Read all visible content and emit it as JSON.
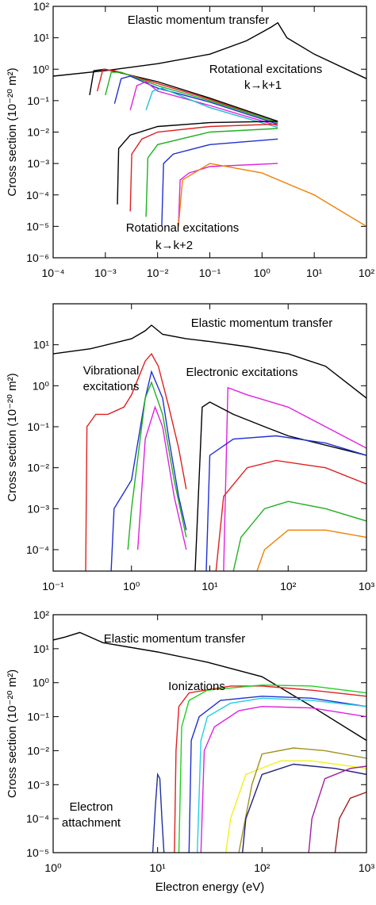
{
  "chart_data": [
    {
      "type": "line",
      "xscale": "log",
      "yscale": "log",
      "y_label": "Cross section (10⁻²⁰ m²)",
      "xlim": [
        0.0001,
        100
      ],
      "ylim": [
        1e-06,
        100
      ],
      "xticks": [
        {
          "value": 0.0001,
          "label": "10⁻⁴"
        },
        {
          "value": 0.001,
          "label": "10⁻³"
        },
        {
          "value": 0.01,
          "label": "10⁻²"
        },
        {
          "value": 0.1,
          "label": "10⁻¹"
        },
        {
          "value": 1,
          "label": "10⁰"
        },
        {
          "value": 10,
          "label": "10¹"
        },
        {
          "value": 100,
          "label": "10²"
        }
      ],
      "yticks": [
        {
          "value": 1e-06,
          "label": "10⁻⁶"
        },
        {
          "value": 1e-05,
          "label": "10⁻⁵"
        },
        {
          "value": 0.0001,
          "label": "10⁻⁴"
        },
        {
          "value": 0.001,
          "label": "10⁻³"
        },
        {
          "value": 0.01,
          "label": "10⁻²"
        },
        {
          "value": 0.1,
          "label": "10⁻¹"
        },
        {
          "value": 1,
          "label": "10⁰"
        },
        {
          "value": 10,
          "label": "10¹"
        },
        {
          "value": 100,
          "label": "10²"
        }
      ],
      "annotations": [
        "Elastic momentum transfer",
        "Rotational excitations",
        "k→k+1",
        "Rotational excitations",
        "k→k+2"
      ],
      "series": [
        {
          "color": "#000000",
          "x": [
            0.0001,
            0.001,
            0.01,
            0.1,
            0.5,
            1,
            1.5,
            2,
            3,
            10,
            100
          ],
          "values": [
            0.6,
            0.9,
            1.5,
            3,
            8,
            15,
            22,
            30,
            10,
            3,
            0.5
          ]
        },
        {
          "color": "#000000",
          "x": [
            0.0005,
            0.0006,
            0.001,
            0.01,
            0.1,
            2
          ],
          "values": [
            0.15,
            0.9,
            1,
            0.4,
            0.12,
            0.022
          ]
        },
        {
          "color": "#e02020",
          "x": [
            0.0007,
            0.0009,
            0.0015,
            0.01,
            0.1,
            2
          ],
          "values": [
            0.2,
            1,
            0.9,
            0.35,
            0.11,
            0.02
          ]
        },
        {
          "color": "#20b020",
          "x": [
            0.001,
            0.0013,
            0.002,
            0.01,
            0.1,
            2
          ],
          "values": [
            0.15,
            0.8,
            0.8,
            0.3,
            0.1,
            0.02
          ]
        },
        {
          "color": "#2030d0",
          "x": [
            0.0015,
            0.002,
            0.003,
            0.01,
            0.1,
            2
          ],
          "values": [
            0.08,
            0.5,
            0.6,
            0.25,
            0.09,
            0.018
          ]
        },
        {
          "color": "#e020e0",
          "x": [
            0.003,
            0.004,
            0.006,
            0.01,
            0.1,
            2
          ],
          "values": [
            0.05,
            0.3,
            0.4,
            0.2,
            0.07,
            0.016
          ]
        },
        {
          "color": "#20c0d0",
          "x": [
            0.006,
            0.008,
            0.012,
            0.1,
            2
          ],
          "values": [
            0.05,
            0.2,
            0.25,
            0.06,
            0.014
          ]
        },
        {
          "color": "#000000",
          "x": [
            0.0017,
            0.0018,
            0.003,
            0.01,
            0.1,
            2
          ],
          "values": [
            5e-05,
            0.003,
            0.008,
            0.015,
            0.02,
            0.022
          ]
        },
        {
          "color": "#e02020",
          "x": [
            0.003,
            0.0032,
            0.005,
            0.01,
            0.1,
            2
          ],
          "values": [
            3e-05,
            0.002,
            0.006,
            0.01,
            0.015,
            0.018
          ]
        },
        {
          "color": "#20b020",
          "x": [
            0.006,
            0.0065,
            0.01,
            0.1,
            2
          ],
          "values": [
            2e-05,
            0.0015,
            0.004,
            0.01,
            0.013
          ]
        },
        {
          "color": "#2030d0",
          "x": [
            0.012,
            0.013,
            0.02,
            0.1,
            2
          ],
          "values": [
            1e-05,
            0.001,
            0.002,
            0.004,
            0.006
          ]
        },
        {
          "color": "#e020e0",
          "x": [
            0.025,
            0.027,
            0.04,
            0.1,
            2
          ],
          "values": [
            1e-05,
            0.0003,
            0.0005,
            0.0008,
            0.001
          ]
        },
        {
          "color": "#f08000",
          "x": [
            0.025,
            0.03,
            0.1,
            1,
            10,
            100
          ],
          "values": [
            1e-05,
            0.0003,
            0.001,
            0.0005,
            0.0001,
            1e-05
          ]
        }
      ]
    },
    {
      "type": "line",
      "xscale": "log",
      "yscale": "log",
      "y_label": "Cross section (10⁻²⁰ m²)",
      "xlim": [
        0.1,
        1000
      ],
      "ylim": [
        3e-05,
        100
      ],
      "xticks": [
        {
          "value": 0.1,
          "label": "10⁻¹"
        },
        {
          "value": 1,
          "label": "10⁰"
        },
        {
          "value": 10,
          "label": "10¹"
        },
        {
          "value": 100,
          "label": "10²"
        },
        {
          "value": 1000,
          "label": "10³"
        }
      ],
      "yticks": [
        {
          "value": 0.0001,
          "label": "10⁻⁴"
        },
        {
          "value": 0.001,
          "label": "10⁻³"
        },
        {
          "value": 0.01,
          "label": "10⁻²"
        },
        {
          "value": 0.1,
          "label": "10⁻¹"
        },
        {
          "value": 1,
          "label": "10⁰"
        },
        {
          "value": 10,
          "label": "10¹"
        }
      ],
      "annotations": [
        "Elastic momentum transfer",
        "Vibrational",
        "excitations",
        "Electronic excitations"
      ],
      "series": [
        {
          "color": "#000000",
          "x": [
            0.1,
            0.3,
            1,
            1.5,
            1.8,
            2.5,
            5,
            10,
            30,
            100,
            300,
            1000
          ],
          "values": [
            6,
            8,
            14,
            22,
            30,
            18,
            14,
            12,
            9,
            6,
            3,
            0.5
          ]
        },
        {
          "color": "#e02020",
          "x": [
            0.26,
            0.27,
            0.35,
            0.5,
            0.8,
            1,
            1.5,
            1.8,
            2.2,
            3,
            4,
            5
          ],
          "values": [
            3e-05,
            0.1,
            0.2,
            0.2,
            0.3,
            0.6,
            4,
            6,
            3,
            0.3,
            0.03,
            0.003
          ]
        },
        {
          "color": "#2030d0",
          "x": [
            0.55,
            0.6,
            1,
            1.5,
            1.8,
            2.5,
            3,
            4,
            5
          ],
          "values": [
            3e-05,
            0.001,
            0.005,
            0.5,
            2.2,
            0.5,
            0.05,
            0.002,
            0.0003
          ]
        },
        {
          "color": "#20b020",
          "x": [
            0.9,
            1,
            1.5,
            1.8,
            2.5,
            3.5,
            5
          ],
          "values": [
            0.0001,
            0.001,
            0.5,
            1.2,
            0.2,
            0.005,
            0.0002
          ]
        },
        {
          "color": "#e020e0",
          "x": [
            1.2,
            1.5,
            2,
            2.5,
            3.5,
            5
          ],
          "values": [
            0.0001,
            0.05,
            0.3,
            0.1,
            0.002,
            0.0001
          ]
        },
        {
          "color": "#e020e0",
          "x": [
            15,
            17,
            30,
            100,
            300,
            1000
          ],
          "values": [
            3e-05,
            0.9,
            0.6,
            0.3,
            0.1,
            0.03
          ]
        },
        {
          "color": "#000000",
          "x": [
            6.5,
            8,
            10,
            20,
            50,
            100,
            1000
          ],
          "values": [
            3e-05,
            0.3,
            0.4,
            0.2,
            0.1,
            0.06,
            0.02
          ]
        },
        {
          "color": "#2030d0",
          "x": [
            9,
            10,
            20,
            70,
            300,
            1000
          ],
          "values": [
            3e-05,
            0.02,
            0.05,
            0.06,
            0.04,
            0.02
          ]
        },
        {
          "color": "#e02020",
          "x": [
            12,
            15,
            30,
            70,
            300,
            1000
          ],
          "values": [
            3e-05,
            0.002,
            0.01,
            0.015,
            0.01,
            0.004
          ]
        },
        {
          "color": "#20b020",
          "x": [
            20,
            25,
            50,
            100,
            300,
            1000
          ],
          "values": [
            3e-05,
            0.0002,
            0.001,
            0.0015,
            0.001,
            0.0005
          ]
        },
        {
          "color": "#f08000",
          "x": [
            40,
            50,
            100,
            300,
            1000
          ],
          "values": [
            3e-05,
            0.0001,
            0.0003,
            0.0003,
            0.0002
          ]
        }
      ]
    },
    {
      "type": "line",
      "xscale": "log",
      "yscale": "log",
      "y_label": "Cross section (10⁻²⁰ m²)",
      "x_label": "Electron energy (eV)",
      "xlim": [
        1,
        1000
      ],
      "ylim": [
        1e-05,
        100
      ],
      "xticks": [
        {
          "value": 1,
          "label": "10⁰"
        },
        {
          "value": 10,
          "label": "10¹"
        },
        {
          "value": 100,
          "label": "10²"
        },
        {
          "value": 1000,
          "label": "10³"
        }
      ],
      "yticks": [
        {
          "value": 1e-05,
          "label": "10⁻⁵"
        },
        {
          "value": 0.0001,
          "label": "10⁻⁴"
        },
        {
          "value": 0.001,
          "label": "10⁻³"
        },
        {
          "value": 0.01,
          "label": "10⁻²"
        },
        {
          "value": 0.1,
          "label": "10⁻¹"
        },
        {
          "value": 1,
          "label": "10⁰"
        },
        {
          "value": 10,
          "label": "10¹"
        },
        {
          "value": 100,
          "label": "10²"
        }
      ],
      "annotations": [
        "Elastic momentum transfer",
        "Ionizations",
        "Electron",
        "attachment"
      ],
      "series": [
        {
          "color": "#000000",
          "x": [
            1,
            1.3,
            1.8,
            3,
            10,
            30,
            100,
            300,
            1000
          ],
          "values": [
            18,
            22,
            30,
            15,
            8,
            4,
            1.5,
            0.2,
            0.02
          ]
        },
        {
          "color": "#2030a0",
          "x": [
            9,
            9.5,
            10,
            10.5,
            11,
            11.5
          ],
          "values": [
            1e-05,
            0.0002,
            0.002,
            0.0015,
            0.0001,
            1e-05
          ]
        },
        {
          "color": "#e02020",
          "x": [
            14.5,
            15,
            16,
            20,
            50,
            100,
            300,
            1000
          ],
          "values": [
            1e-05,
            0.01,
            0.2,
            0.5,
            0.8,
            0.8,
            0.6,
            0.4
          ]
        },
        {
          "color": "#20d020",
          "x": [
            16,
            17,
            20,
            30,
            100,
            300,
            1000
          ],
          "values": [
            1e-05,
            0.05,
            0.3,
            0.6,
            0.85,
            0.8,
            0.5
          ]
        },
        {
          "color": "#2030d0",
          "x": [
            20,
            21,
            25,
            40,
            100,
            300,
            1000
          ],
          "values": [
            1e-05,
            0.02,
            0.1,
            0.3,
            0.4,
            0.35,
            0.2
          ]
        },
        {
          "color": "#20d0e0",
          "x": [
            24,
            26,
            30,
            50,
            100,
            300,
            1000
          ],
          "values": [
            1e-05,
            0.02,
            0.1,
            0.25,
            0.35,
            0.3,
            0.2
          ]
        },
        {
          "color": "#e020e0",
          "x": [
            26,
            28,
            35,
            60,
            100,
            300,
            1000
          ],
          "values": [
            1e-05,
            0.01,
            0.05,
            0.15,
            0.2,
            0.18,
            0.1
          ]
        },
        {
          "color": "#f0f020",
          "x": [
            45,
            50,
            70,
            150,
            300,
            1000
          ],
          "values": [
            1e-05,
            0.0001,
            0.002,
            0.005,
            0.005,
            0.003
          ]
        },
        {
          "color": "#a09020",
          "x": [
            60,
            80,
            100,
            200,
            400,
            1000
          ],
          "values": [
            1e-05,
            0.001,
            0.008,
            0.012,
            0.01,
            0.006
          ]
        },
        {
          "color": "#202080",
          "x": [
            65,
            70,
            100,
            200,
            500,
            1000
          ],
          "values": [
            1e-05,
            0.0001,
            0.002,
            0.004,
            0.003,
            0.002
          ]
        },
        {
          "color": "#a020a0",
          "x": [
            280,
            300,
            400,
            700,
            1000
          ],
          "values": [
            1e-05,
            0.0001,
            0.0015,
            0.003,
            0.0035
          ]
        },
        {
          "color": "#a02020",
          "x": [
            500,
            550,
            700,
            1000
          ],
          "values": [
            1e-05,
            0.0001,
            0.0004,
            0.0006
          ]
        }
      ]
    }
  ]
}
